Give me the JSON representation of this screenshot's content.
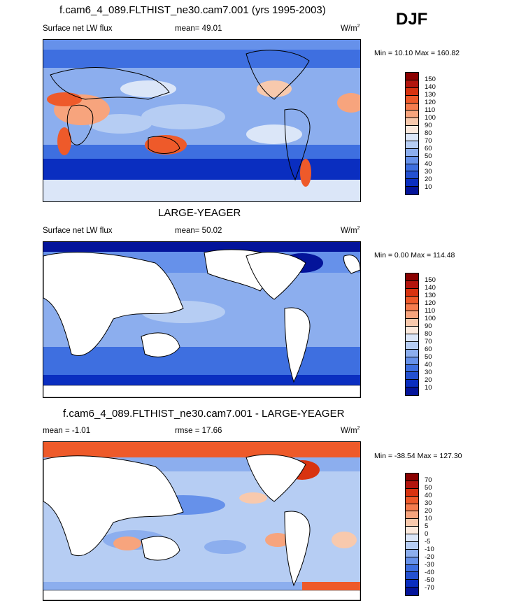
{
  "season": "DJF",
  "panels": [
    {
      "title": "f.cam6_4_089.FLTHIST_ne30.cam7.001 (yrs 1995-2003)",
      "left_label": "Surface net LW flux",
      "center_label": "mean=  49.01",
      "units": "W/m",
      "units_sup": "2",
      "minmax": "Min =  10.10 Max = 160.82",
      "colorbar_ticks": [
        "150",
        "140",
        "130",
        "120",
        "110",
        "100",
        "90",
        "80",
        "70",
        "60",
        "50",
        "40",
        "30",
        "20",
        "10"
      ],
      "colorbar_colors": [
        "#8b0000",
        "#b3150e",
        "#d83310",
        "#ee5a2a",
        "#f57c4e",
        "#f7a47d",
        "#f8c9ad",
        "#fbe9dd",
        "#dbe6f8",
        "#b6cdf3",
        "#8caeee",
        "#6691ea",
        "#3e6fe0",
        "#2451d0",
        "#0a2ec0",
        "#04149a"
      ],
      "land_masked": false
    },
    {
      "title": "LARGE-YEAGER",
      "left_label": "Surface net LW flux",
      "center_label": "mean=  50.02",
      "units": "W/m",
      "units_sup": "2",
      "minmax": "Min =   0.00 Max = 114.48",
      "colorbar_ticks": [
        "150",
        "140",
        "130",
        "120",
        "110",
        "100",
        "90",
        "80",
        "70",
        "60",
        "50",
        "40",
        "30",
        "20",
        "10"
      ],
      "colorbar_colors": [
        "#8b0000",
        "#b3150e",
        "#d83310",
        "#ee5a2a",
        "#f57c4e",
        "#f7a47d",
        "#f8c9ad",
        "#fbe9dd",
        "#dbe6f8",
        "#b6cdf3",
        "#8caeee",
        "#6691ea",
        "#3e6fe0",
        "#2451d0",
        "#0a2ec0",
        "#04149a"
      ],
      "land_masked": true
    },
    {
      "title": "f.cam6_4_089.FLTHIST_ne30.cam7.001 - LARGE-YEAGER",
      "left_label": "mean =  -1.01",
      "center_label": "rmse =  17.66",
      "units": "W/m",
      "units_sup": "2",
      "minmax": "Min = -38.54 Max = 127.30",
      "colorbar_ticks": [
        "70",
        "50",
        "40",
        "30",
        "20",
        "10",
        "5",
        "0",
        "-5",
        "-10",
        "-20",
        "-30",
        "-40",
        "-50",
        "-70"
      ],
      "colorbar_colors": [
        "#8b0000",
        "#b3150e",
        "#d83310",
        "#ee5a2a",
        "#f57c4e",
        "#f7a47d",
        "#f8c9ad",
        "#fbe9dd",
        "#dbe6f8",
        "#b6cdf3",
        "#8caeee",
        "#6691ea",
        "#3e6fe0",
        "#2451d0",
        "#0a2ec0",
        "#04149a"
      ],
      "land_masked": true
    }
  ],
  "chart_data": {
    "type": "heatmap",
    "panels": [
      {
        "title": "f.cam6_4_089.FLTHIST_ne30.cam7.001 (yrs 1995-2003)",
        "field": "Surface net LW flux",
        "mean": 49.01,
        "min": 10.1,
        "max": 160.82,
        "units": "W/m2",
        "levels": [
          10,
          20,
          30,
          40,
          50,
          60,
          70,
          80,
          90,
          100,
          110,
          120,
          130,
          140,
          150
        ]
      },
      {
        "title": "LARGE-YEAGER",
        "field": "Surface net LW flux",
        "mean": 50.02,
        "min": 0.0,
        "max": 114.48,
        "units": "W/m2",
        "levels": [
          10,
          20,
          30,
          40,
          50,
          60,
          70,
          80,
          90,
          100,
          110,
          120,
          130,
          140,
          150
        ]
      },
      {
        "title": "f.cam6_4_089.FLTHIST_ne30.cam7.001 - LARGE-YEAGER",
        "mean": -1.01,
        "rmse": 17.66,
        "min": -38.54,
        "max": 127.3,
        "units": "W/m2",
        "levels": [
          -70,
          -50,
          -40,
          -30,
          -20,
          -10,
          -5,
          0,
          5,
          10,
          20,
          30,
          40,
          50,
          70
        ]
      }
    ]
  }
}
